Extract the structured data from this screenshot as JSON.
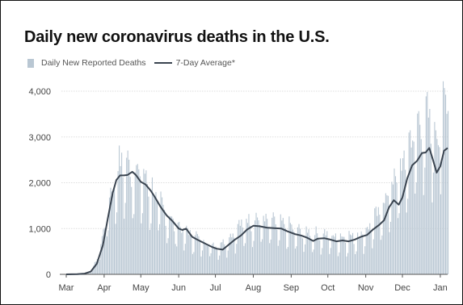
{
  "chart_data": {
    "type": "bar",
    "title": "Daily new coronavirus deaths in the U.S.",
    "legend": [
      {
        "name": "Daily New Reported Deaths",
        "kind": "bar",
        "color": "#b9c7d3"
      },
      {
        "name": "7-Day Average*",
        "kind": "line",
        "color": "#3a4450"
      }
    ],
    "legend_position": "top-left",
    "grid": "horizontal",
    "ylim": [
      0,
      4000
    ],
    "yticks": [
      {
        "label": "0",
        "value": 0
      },
      {
        "label": "1,000",
        "value": 1000
      },
      {
        "label": "2,000",
        "value": 2000
      },
      {
        "label": "3,000",
        "value": 3000
      },
      {
        "label": "4,000",
        "value": 4000
      }
    ],
    "xlim": [
      "2020-03-01",
      "2021-01-07"
    ],
    "xticks": [
      {
        "label": "Mar",
        "date": "2020-03-01"
      },
      {
        "label": "Apr",
        "date": "2020-04-01"
      },
      {
        "label": "May",
        "date": "2020-05-01"
      },
      {
        "label": "Jun",
        "date": "2020-06-01"
      },
      {
        "label": "Jul",
        "date": "2020-07-01"
      },
      {
        "label": "Aug",
        "date": "2020-08-01"
      },
      {
        "label": "Sep",
        "date": "2020-09-01"
      },
      {
        "label": "Oct",
        "date": "2020-10-01"
      },
      {
        "label": "Nov",
        "date": "2020-11-01"
      },
      {
        "label": "Dec",
        "date": "2020-12-01"
      },
      {
        "label": "Jan",
        "date": "2021-01-01"
      }
    ],
    "average_points": [
      [
        "2020-03-01",
        0
      ],
      [
        "2020-03-10",
        5
      ],
      [
        "2020-03-16",
        15
      ],
      [
        "2020-03-21",
        60
      ],
      [
        "2020-03-26",
        230
      ],
      [
        "2020-03-31",
        640
      ],
      [
        "2020-04-04",
        1220
      ],
      [
        "2020-04-08",
        1780
      ],
      [
        "2020-04-11",
        2060
      ],
      [
        "2020-04-14",
        2160
      ],
      [
        "2020-04-17",
        2160
      ],
      [
        "2020-04-20",
        2170
      ],
      [
        "2020-04-24",
        2240
      ],
      [
        "2020-04-27",
        2170
      ],
      [
        "2020-05-01",
        2020
      ],
      [
        "2020-05-05",
        1960
      ],
      [
        "2020-05-09",
        1830
      ],
      [
        "2020-05-12",
        1710
      ],
      [
        "2020-05-17",
        1480
      ],
      [
        "2020-05-22",
        1290
      ],
      [
        "2020-05-27",
        1160
      ],
      [
        "2020-06-01",
        1000
      ],
      [
        "2020-06-04",
        970
      ],
      [
        "2020-06-07",
        1000
      ],
      [
        "2020-06-12",
        820
      ],
      [
        "2020-06-16",
        760
      ],
      [
        "2020-06-22",
        680
      ],
      [
        "2020-06-28",
        600
      ],
      [
        "2020-07-02",
        560
      ],
      [
        "2020-07-07",
        540
      ],
      [
        "2020-07-12",
        650
      ],
      [
        "2020-07-17",
        760
      ],
      [
        "2020-07-22",
        850
      ],
      [
        "2020-07-27",
        980
      ],
      [
        "2020-08-01",
        1060
      ],
      [
        "2020-08-06",
        1050
      ],
      [
        "2020-08-12",
        1020
      ],
      [
        "2020-08-18",
        1010
      ],
      [
        "2020-08-24",
        1000
      ],
      [
        "2020-08-29",
        940
      ],
      [
        "2020-09-04",
        880
      ],
      [
        "2020-09-09",
        850
      ],
      [
        "2020-09-14",
        800
      ],
      [
        "2020-09-19",
        730
      ],
      [
        "2020-09-23",
        780
      ],
      [
        "2020-09-28",
        790
      ],
      [
        "2020-10-03",
        760
      ],
      [
        "2020-10-08",
        720
      ],
      [
        "2020-10-13",
        740
      ],
      [
        "2020-10-18",
        720
      ],
      [
        "2020-10-23",
        760
      ],
      [
        "2020-10-28",
        820
      ],
      [
        "2020-11-02",
        860
      ],
      [
        "2020-11-07",
        980
      ],
      [
        "2020-11-12",
        1080
      ],
      [
        "2020-11-16",
        1180
      ],
      [
        "2020-11-20",
        1460
      ],
      [
        "2020-11-24",
        1620
      ],
      [
        "2020-11-28",
        1520
      ],
      [
        "2020-12-01",
        1680
      ],
      [
        "2020-12-05",
        2100
      ],
      [
        "2020-12-09",
        2380
      ],
      [
        "2020-12-13",
        2480
      ],
      [
        "2020-12-17",
        2650
      ],
      [
        "2020-12-20",
        2660
      ],
      [
        "2020-12-23",
        2760
      ],
      [
        "2020-12-26",
        2500
      ],
      [
        "2020-12-29",
        2220
      ],
      [
        "2021-01-01",
        2360
      ],
      [
        "2021-01-04",
        2700
      ],
      [
        "2021-01-07",
        2760
      ]
    ],
    "daily_points": [
      [
        "2020-03-01",
        0
      ],
      [
        "2020-03-15",
        10
      ],
      [
        "2020-03-22",
        80
      ],
      [
        "2020-03-29",
        600
      ],
      [
        "2020-04-04",
        1500
      ],
      [
        "2020-04-09",
        2000
      ],
      [
        "2020-04-14",
        2400
      ],
      [
        "2020-04-21",
        2300
      ],
      [
        "2020-04-28",
        2200
      ],
      [
        "2020-05-05",
        2000
      ],
      [
        "2020-05-12",
        1700
      ],
      [
        "2020-05-19",
        1400
      ],
      [
        "2020-05-26",
        1150
      ],
      [
        "2020-06-02",
        1000
      ],
      [
        "2020-06-09",
        900
      ],
      [
        "2020-06-16",
        800
      ],
      [
        "2020-06-23",
        700
      ],
      [
        "2020-06-30",
        620
      ],
      [
        "2020-07-07",
        680
      ],
      [
        "2020-07-14",
        850
      ],
      [
        "2020-07-21",
        1050
      ],
      [
        "2020-07-28",
        1150
      ],
      [
        "2020-08-04",
        1200
      ],
      [
        "2020-08-11",
        1150
      ],
      [
        "2020-08-18",
        1100
      ],
      [
        "2020-08-25",
        1050
      ],
      [
        "2020-09-01",
        1000
      ],
      [
        "2020-09-08",
        900
      ],
      [
        "2020-09-15",
        900
      ],
      [
        "2020-09-22",
        850
      ],
      [
        "2020-09-29",
        850
      ],
      [
        "2020-10-06",
        800
      ],
      [
        "2020-10-13",
        800
      ],
      [
        "2020-10-20",
        800
      ],
      [
        "2020-10-27",
        850
      ],
      [
        "2020-11-03",
        1000
      ],
      [
        "2020-11-10",
        1250
      ],
      [
        "2020-11-17",
        1600
      ],
      [
        "2020-11-24",
        2000
      ],
      [
        "2020-12-01",
        2300
      ],
      [
        "2020-12-08",
        2900
      ],
      [
        "2020-12-15",
        3200
      ],
      [
        "2020-12-22",
        3300
      ],
      [
        "2020-12-29",
        3000
      ],
      [
        "2021-01-05",
        3700
      ],
      [
        "2021-01-07",
        4000
      ]
    ]
  }
}
